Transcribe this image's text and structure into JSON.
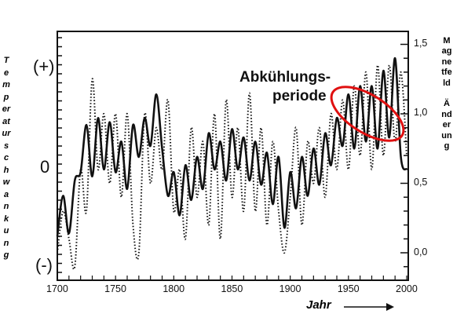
{
  "chart_data": {
    "type": "line",
    "title": "",
    "xlabel": "Jahr",
    "ylabel_left": "Temperaturschwankung",
    "ylabel_right": "Magnetfeld Änderung",
    "xlim": [
      1700,
      2000
    ],
    "ylim_right": [
      -0.1,
      1.6
    ],
    "x_ticks": [
      "1700",
      "1750",
      "1800",
      "1850",
      "1900",
      "1950",
      "2000"
    ],
    "y_left_ticks": [
      "(+)",
      "0",
      "(-)"
    ],
    "y_right_ticks": [
      "1,5",
      "1,0",
      "0,5",
      "0,0"
    ],
    "grid": false,
    "annotation": {
      "text_line1": "Abkühlungs-",
      "text_line2": "periode",
      "highlight_color": "#e01010",
      "highlight_range_years": [
        1945,
        1995
      ]
    },
    "x": [
      1700,
      1705,
      1710,
      1715,
      1720,
      1725,
      1730,
      1735,
      1740,
      1745,
      1750,
      1755,
      1760,
      1765,
      1770,
      1775,
      1780,
      1785,
      1790,
      1795,
      1800,
      1805,
      1810,
      1815,
      1820,
      1825,
      1830,
      1835,
      1840,
      1845,
      1850,
      1855,
      1860,
      1865,
      1870,
      1875,
      1880,
      1885,
      1890,
      1895,
      1900,
      1905,
      1910,
      1915,
      1920,
      1925,
      1930,
      1935,
      1940,
      1945,
      1950,
      1955,
      1960,
      1965,
      1970,
      1975,
      1980,
      1985,
      1990,
      1995,
      2000
    ],
    "series": [
      {
        "style": "solid",
        "color": "#111111",
        "values": [
          0.12,
          0.41,
          0.14,
          0.52,
          0.58,
          0.92,
          0.55,
          0.97,
          0.6,
          0.94,
          0.58,
          0.8,
          0.46,
          0.92,
          0.69,
          0.97,
          0.77,
          1.14,
          0.75,
          0.41,
          0.58,
          0.27,
          0.63,
          0.38,
          0.69,
          0.46,
          0.86,
          0.6,
          0.8,
          0.52,
          0.89,
          0.6,
          0.83,
          0.52,
          0.8,
          0.49,
          0.72,
          0.35,
          0.69,
          0.18,
          0.58,
          0.32,
          0.69,
          0.41,
          0.75,
          0.49,
          0.86,
          0.63,
          0.97,
          0.77,
          1.14,
          0.75,
          1.2,
          0.8,
          1.2,
          0.75,
          1.31,
          0.83,
          1.4,
          0.69,
          0.6
        ]
      },
      {
        "style": "dotted",
        "color": "#111111",
        "values": [
          0.0,
          0.3,
          0.1,
          -0.1,
          0.6,
          0.3,
          1.25,
          0.6,
          1.0,
          0.5,
          1.0,
          0.4,
          1.0,
          0.2,
          0.0,
          1.0,
          0.5,
          0.9,
          0.6,
          1.1,
          0.3,
          0.6,
          0.1,
          0.9,
          0.4,
          0.8,
          0.2,
          1.0,
          0.1,
          1.1,
          0.4,
          0.9,
          0.3,
          1.15,
          0.3,
          0.9,
          0.2,
          0.8,
          0.3,
          0.0,
          0.4,
          0.9,
          0.2,
          0.8,
          0.5,
          0.9,
          0.4,
          1.0,
          0.6,
          1.1,
          0.6,
          1.2,
          0.7,
          1.3,
          0.6,
          1.35,
          0.7,
          1.35,
          0.8,
          1.3,
          0.7
        ]
      }
    ]
  }
}
